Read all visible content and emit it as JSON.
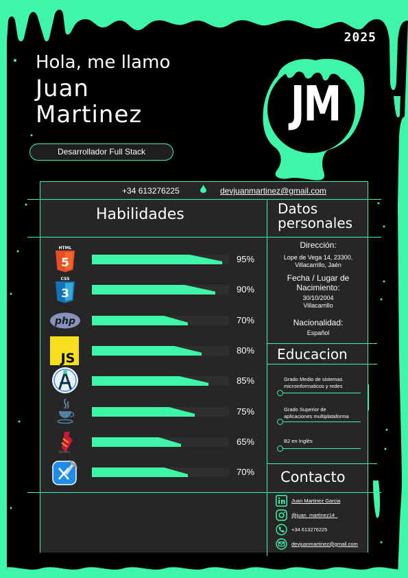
{
  "header": {
    "year": "2025",
    "greeting": "Hola, me llamo",
    "first_name": "Juan",
    "last_name": "Martinez",
    "role": "Desarrollador Full Stack",
    "monogram": "JM"
  },
  "contact_bar": {
    "phone": "+34 613276225",
    "email": "devjuanmartinez@gmail.com"
  },
  "skills": {
    "title": "Habilidades",
    "items": [
      {
        "icon": "html5-icon",
        "label": "HTML",
        "percent": 95,
        "percent_text": "95%"
      },
      {
        "icon": "css3-icon",
        "label": "CSS",
        "percent": 90,
        "percent_text": "90%"
      },
      {
        "icon": "php-icon",
        "label": "php",
        "percent": 70,
        "percent_text": "70%"
      },
      {
        "icon": "javascript-icon",
        "label": "JS",
        "percent": 80,
        "percent_text": "80%"
      },
      {
        "icon": "android-studio-icon",
        "label": "",
        "percent": 85,
        "percent_text": "85%"
      },
      {
        "icon": "java-icon",
        "label": "",
        "percent": 75,
        "percent_text": "75%"
      },
      {
        "icon": "maven-icon",
        "label": "",
        "percent": 65,
        "percent_text": "65%"
      },
      {
        "icon": "xcode-icon",
        "label": "",
        "percent": 70,
        "percent_text": "70%"
      }
    ]
  },
  "personal": {
    "title_line1": "Datos",
    "title_line2": "personales",
    "address_label": "Dirección:",
    "address_line1": "Lope de Vega 14, 23300,",
    "address_line2": "Villacarrillo, Jaén",
    "birth_label_line1": "Fecha / Lugar de",
    "birth_label_line2": "Nacimiento:",
    "birth_date": "30/10/2004",
    "birth_place": "Villacarrillo",
    "nationality_label": "Nacionalidad:",
    "nationality": "Español"
  },
  "education": {
    "title": "Educacion",
    "items": [
      {
        "line1": "Grado Medio de sistemas",
        "line2": "microinformaticos y redes"
      },
      {
        "line1": "Grado Superior de",
        "line2": "aplicaciones multiplataforma"
      },
      {
        "line1": "B2 en Inglés",
        "line2": ""
      }
    ]
  },
  "contact": {
    "title": "Contacto",
    "linkedin": "Juan Martinez Garcia",
    "instagram": "@juan_martinez14_",
    "phone": "+34 613276225",
    "email": "devjuanmartinez@gmail.com"
  },
  "colors": {
    "accent": "#3ff5a8",
    "background": "#000000",
    "card": "#262626",
    "track": "#2e2e2e"
  }
}
